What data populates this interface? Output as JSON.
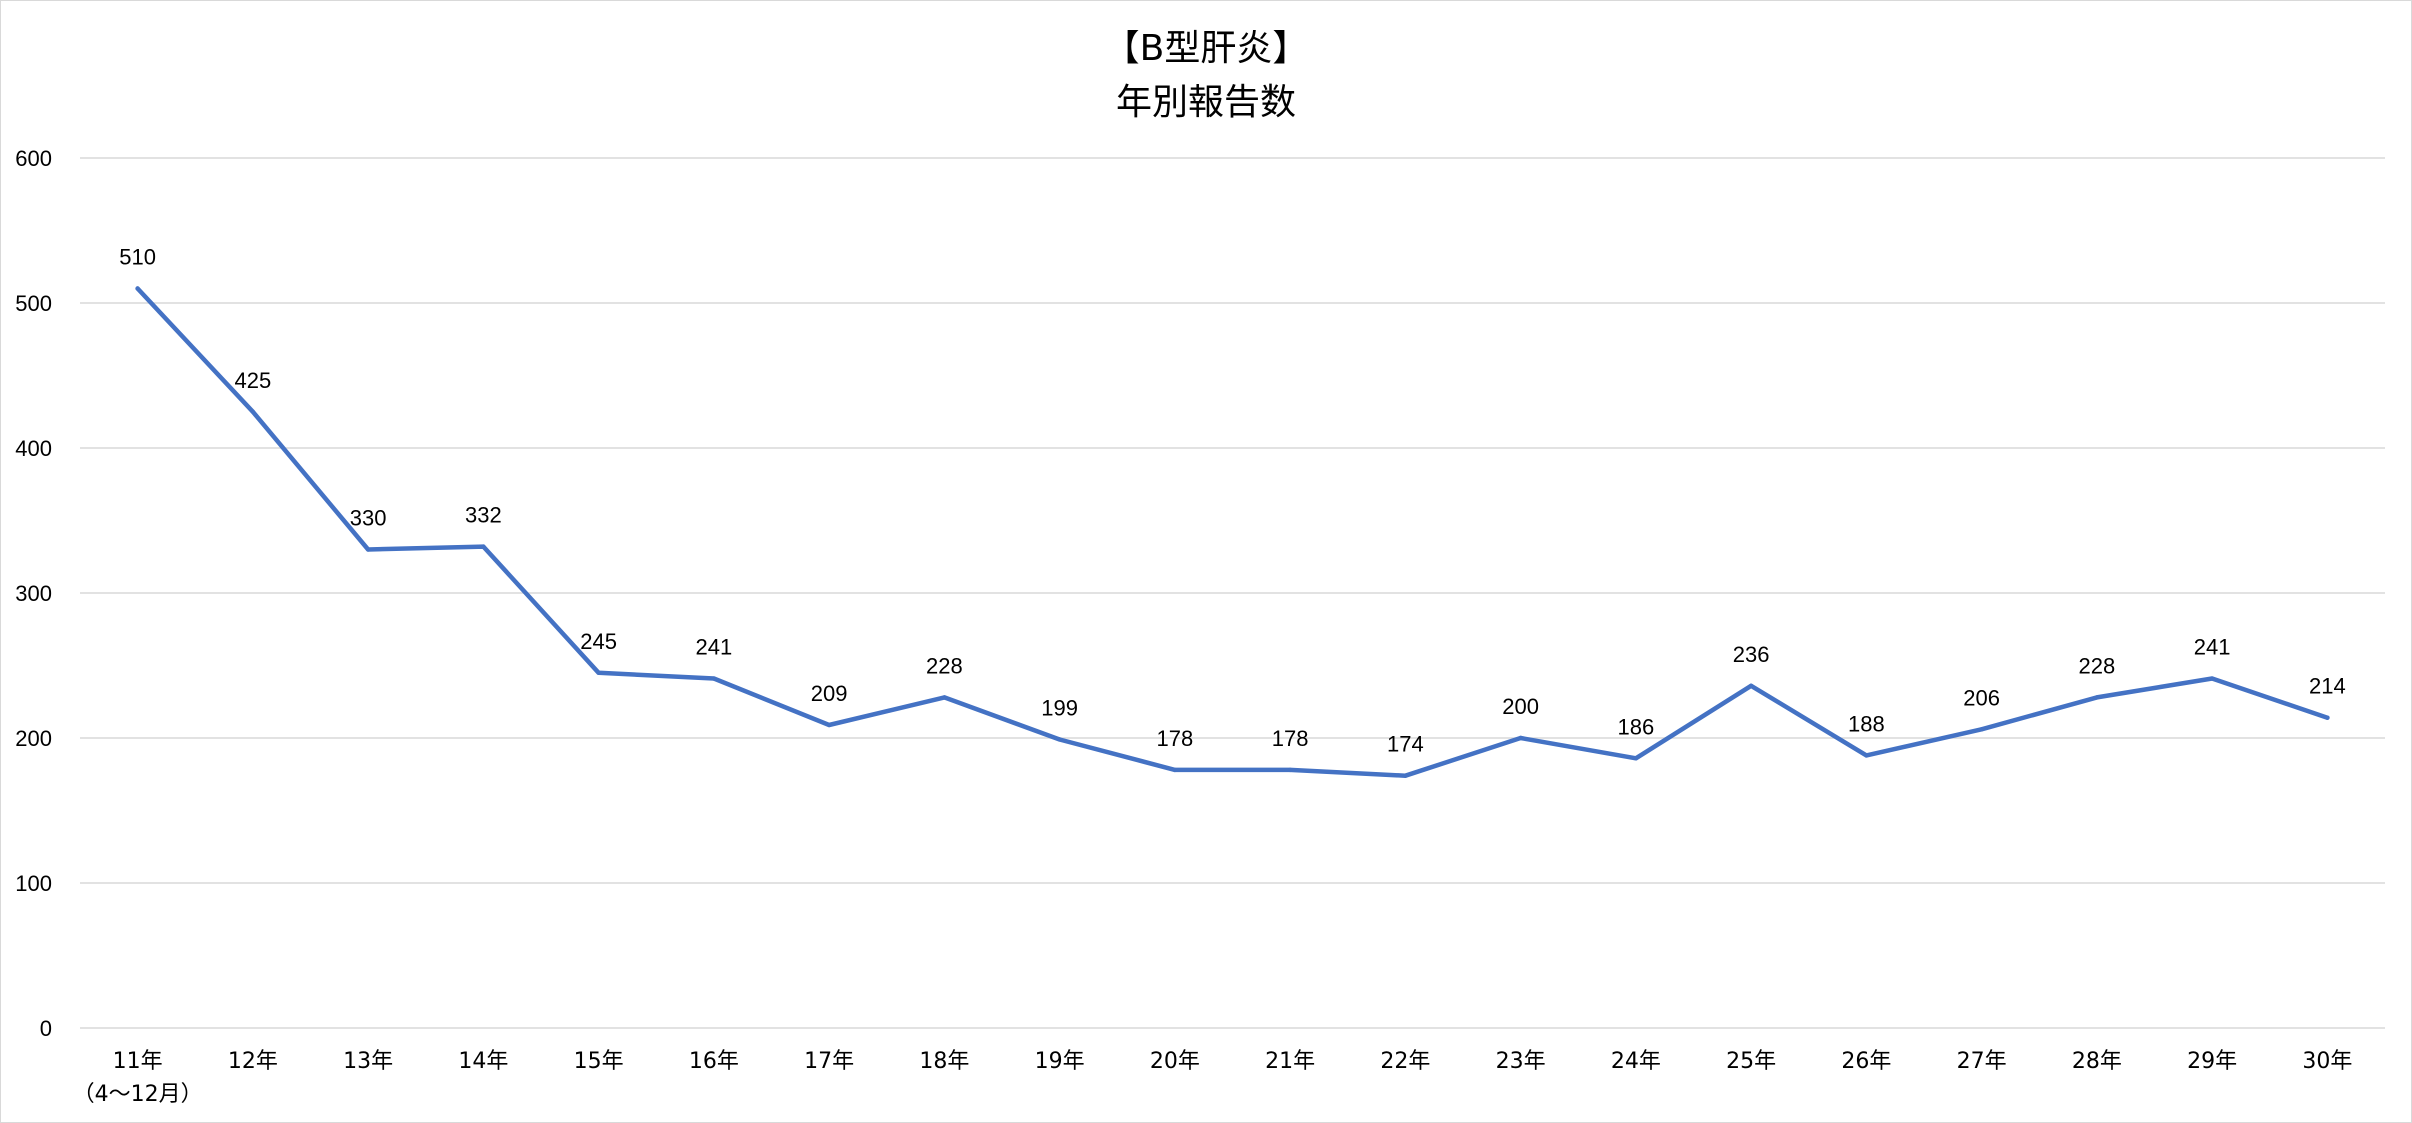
{
  "chart_data": {
    "type": "line",
    "title": "【B型肝炎】",
    "subtitle": "年別報告数",
    "xlabel": "",
    "ylabel": "",
    "ylim": [
      0,
      600
    ],
    "yticks": [
      "0",
      "100",
      "200",
      "300",
      "400",
      "500",
      "600"
    ],
    "categories": [
      "11年",
      "12年",
      "13年",
      "14年",
      "15年",
      "16年",
      "17年",
      "18年",
      "19年",
      "20年",
      "21年",
      "22年",
      "23年",
      "24年",
      "25年",
      "26年",
      "27年",
      "28年",
      "29年",
      "30年"
    ],
    "first_category_note": "（4～12月）",
    "series": [
      {
        "values": [
          510,
          425,
          330,
          332,
          245,
          241,
          209,
          228,
          199,
          178,
          178,
          174,
          200,
          186,
          236,
          188,
          206,
          228,
          241,
          214
        ]
      }
    ],
    "data_labels": [
      "510",
      "425",
      "330",
      "332",
      "245",
      "241",
      "209",
      "228",
      "199",
      "178",
      "178",
      "174",
      "200",
      "186",
      "236",
      "188",
      "206",
      "228",
      "241",
      "214"
    ],
    "grid": true,
    "legend": "none",
    "line_color": "#4472c4",
    "grid_color": "#d9d9d9"
  }
}
